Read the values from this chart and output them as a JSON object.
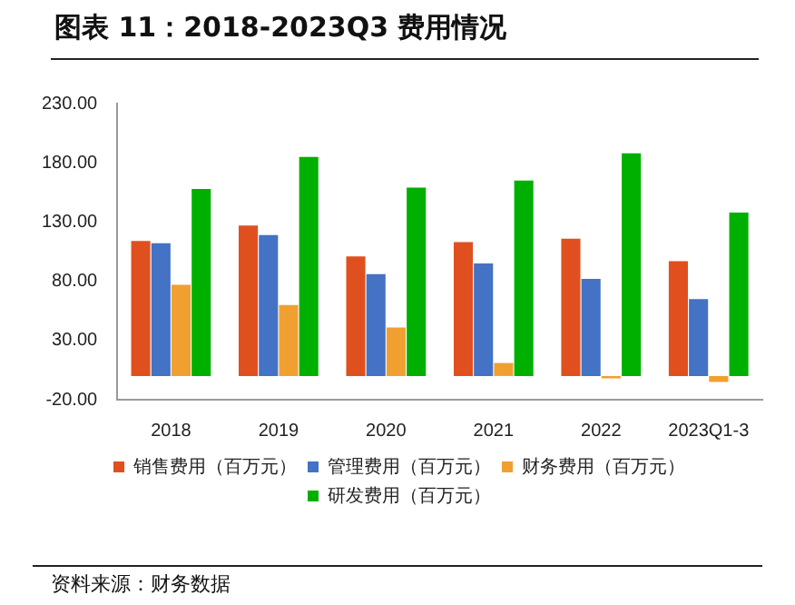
{
  "chart_data": {
    "type": "bar",
    "title": "图表 11：2018-2023Q3 费用情况",
    "categories": [
      "2018",
      "2019",
      "2020",
      "2021",
      "2022",
      "2023Q1-3"
    ],
    "series": [
      {
        "name": "销售费用（百万元）",
        "color": "#e0501f",
        "values": [
          114,
          127,
          101,
          113,
          116,
          97
        ]
      },
      {
        "name": "管理费用（百万元）",
        "color": "#4472c4",
        "values": [
          112,
          119,
          86,
          95,
          82,
          65
        ]
      },
      {
        "name": "财务费用（百万元）",
        "color": "#f0a030",
        "values": [
          77,
          60,
          41,
          11,
          -2,
          -5
        ]
      },
      {
        "name": "研发费用（百万元）",
        "color": "#00b000",
        "values": [
          158,
          185,
          159,
          165,
          188,
          138
        ]
      }
    ],
    "ylim": [
      -20,
      230
    ],
    "yticks": [
      {
        "value": -20,
        "label": "-20.00"
      },
      {
        "value": 30,
        "label": "30.00"
      },
      {
        "value": 80,
        "label": "80.00"
      },
      {
        "value": 130,
        "label": "130.00"
      },
      {
        "value": 180,
        "label": "180.00"
      },
      {
        "value": 230,
        "label": "230.00"
      }
    ],
    "grid": false,
    "legend": "bottom",
    "annotations": [
      "资料来源：财务数据"
    ]
  }
}
